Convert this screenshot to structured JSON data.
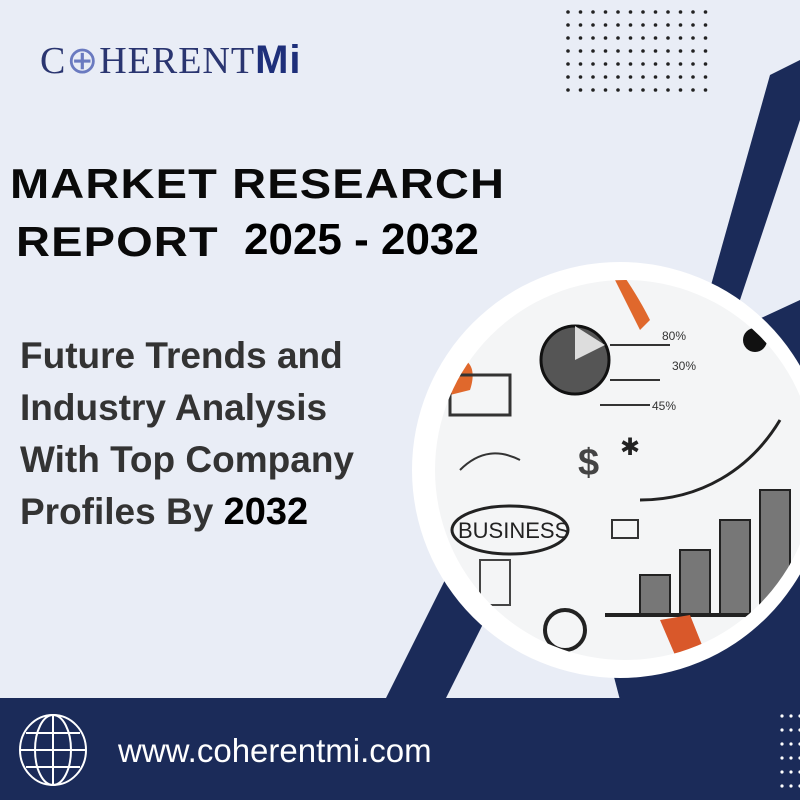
{
  "brand": {
    "logo_text_prefix": "C",
    "logo_text_mid": "HERENT",
    "logo_text_suffix": "Mi",
    "logo_full": "CoherentMi"
  },
  "headline": {
    "line1": "MARKET RESEARCH",
    "line2": "REPORT",
    "years": "2025 - 2032"
  },
  "subtitle": {
    "line1": "Future Trends and",
    "line2": "Industry Analysis",
    "line3": "With Top Company",
    "line4_prefix": "Profiles By",
    "line4_year": "2032"
  },
  "footer": {
    "url": "www.coherentmi.com",
    "icon": "globe-icon"
  },
  "illustration": {
    "labels": [
      "BUSINESS",
      "$",
      "80%",
      "30%",
      "45%"
    ]
  },
  "colors": {
    "navy": "#1b2b59",
    "background": "#e9edf6",
    "accent_orange": "#e0682c"
  }
}
